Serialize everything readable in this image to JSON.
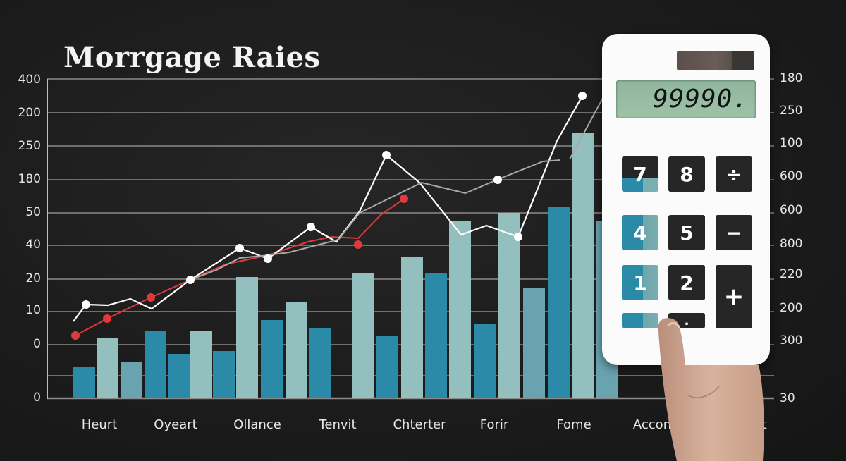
{
  "title": "Morrgage Raies",
  "axes": {
    "left_ticks": [
      "400",
      "200",
      "250",
      "180",
      "50",
      "40",
      "20",
      "10",
      "0",
      "0"
    ],
    "right_ticks": [
      "180",
      "250",
      "100",
      "600",
      "600",
      "800",
      "220",
      "200",
      "300",
      "30"
    ],
    "x_labels": [
      "Heurt",
      "Oyeart",
      "Ollance",
      "Tenvit",
      "Chterter",
      "Forir",
      "Fome",
      "Accon",
      "ret"
    ]
  },
  "calculator": {
    "display": "99990.",
    "keys": [
      "7",
      "8",
      "÷",
      "4",
      "5",
      "−",
      "1",
      "2",
      "+",
      "",
      "."
    ]
  },
  "colors": {
    "background": "#1c1c1c",
    "bar_dark": "#2b8aa8",
    "bar_light": "#93bfbe",
    "bar_mid": "#6aa3b0",
    "line_red": "#e0383b",
    "line_white": "#ffffff",
    "line_gray": "#a8a8a8",
    "grid": "#8a8a8a"
  },
  "chart_data": {
    "type": "bar",
    "title": "Morrgage Raies",
    "xlabel": "",
    "ylabel": "",
    "categories": [
      "Heurt",
      "Oyeart",
      "Ollance",
      "Tenvit",
      "Chterter",
      "Forir",
      "Fome",
      "Accon",
      "ret"
    ],
    "left_axis_ticks": [
      "400",
      "200",
      "250",
      "180",
      "50",
      "40",
      "20",
      "10",
      "0",
      "0"
    ],
    "right_axis_ticks": [
      "180",
      "250",
      "100",
      "600",
      "600",
      "800",
      "220",
      "200",
      "300",
      "30"
    ],
    "grid": true,
    "legend": "none",
    "bars": [
      {
        "x": 104,
        "top": 521,
        "w": 31,
        "color": "dark"
      },
      {
        "x": 137,
        "top": 480,
        "w": 31,
        "color": "light"
      },
      {
        "x": 171,
        "top": 513,
        "w": 31,
        "color": "mid"
      },
      {
        "x": 205,
        "top": 469,
        "w": 31,
        "color": "dark"
      },
      {
        "x": 238,
        "top": 502,
        "w": 31,
        "color": "dark"
      },
      {
        "x": 270,
        "top": 469,
        "w": 31,
        "color": "light"
      },
      {
        "x": 302,
        "top": 498,
        "w": 31,
        "color": "dark"
      },
      {
        "x": 335,
        "top": 393,
        "w": 31,
        "color": "light"
      },
      {
        "x": 370,
        "top": 454,
        "w": 31,
        "color": "dark"
      },
      {
        "x": 405,
        "top": 428,
        "w": 31,
        "color": "light"
      },
      {
        "x": 438,
        "top": 466,
        "w": 31,
        "color": "dark"
      },
      {
        "x": 499,
        "top": 388,
        "w": 31,
        "color": "light"
      },
      {
        "x": 534,
        "top": 476,
        "w": 31,
        "color": "dark"
      },
      {
        "x": 569,
        "top": 365,
        "w": 31,
        "color": "light"
      },
      {
        "x": 603,
        "top": 387,
        "w": 31,
        "color": "dark"
      },
      {
        "x": 637,
        "top": 314,
        "w": 31,
        "color": "light"
      },
      {
        "x": 672,
        "top": 459,
        "w": 31,
        "color": "dark"
      },
      {
        "x": 707,
        "top": 302,
        "w": 31,
        "color": "light"
      },
      {
        "x": 742,
        "top": 409,
        "w": 31,
        "color": "mid"
      },
      {
        "x": 777,
        "top": 293,
        "w": 31,
        "color": "dark"
      },
      {
        "x": 811,
        "top": 188,
        "w": 31,
        "color": "light"
      },
      {
        "x": 845,
        "top": 313,
        "w": 31,
        "color": "mid"
      }
    ],
    "series": [
      {
        "name": "red",
        "points": [
          [
            107,
            476
          ],
          [
            152,
            452
          ],
          [
            214,
            422
          ],
          [
            270,
            397
          ],
          [
            320,
            375
          ],
          [
            380,
            362
          ],
          [
            437,
            343
          ],
          [
            470,
            336
          ],
          [
            508,
            338
          ],
          [
            540,
            305
          ],
          [
            573,
            282
          ]
        ]
      },
      {
        "name": "white",
        "points": [
          [
            104,
            456
          ],
          [
            122,
            432
          ],
          [
            153,
            433
          ],
          [
            185,
            424
          ],
          [
            215,
            438
          ],
          [
            270,
            397
          ],
          [
            340,
            352
          ],
          [
            380,
            367
          ],
          [
            441,
            322
          ],
          [
            477,
            343
          ],
          [
            510,
            300
          ],
          [
            548,
            220
          ],
          [
            595,
            259
          ],
          [
            654,
            333
          ],
          [
            690,
            320
          ],
          [
            735,
            336
          ],
          [
            790,
            200
          ],
          [
            826,
            136
          ]
        ]
      },
      {
        "name": "gray",
        "points": [
          [
            270,
            397
          ],
          [
            307,
            383
          ],
          [
            340,
            366
          ],
          [
            372,
            363
          ],
          [
            410,
            358
          ],
          [
            480,
            340
          ],
          [
            510,
            302
          ],
          [
            598,
            259
          ],
          [
            660,
            274
          ],
          [
            705,
            255
          ],
          [
            770,
            229
          ],
          [
            795,
            227
          ]
        ]
      },
      {
        "name": "gray-2",
        "points": [
          [
            808,
            226
          ],
          [
            860,
            130
          ]
        ]
      }
    ],
    "markers_white": [
      [
        122,
        432
      ],
      [
        270,
        397
      ],
      [
        340,
        352
      ],
      [
        380,
        367
      ],
      [
        441,
        322
      ],
      [
        548,
        220
      ],
      [
        706,
        255
      ],
      [
        735,
        336
      ],
      [
        826,
        136
      ]
    ],
    "markers_red": [
      [
        107,
        476
      ],
      [
        152,
        452
      ],
      [
        214,
        422
      ],
      [
        508,
        347
      ],
      [
        573,
        282
      ]
    ]
  }
}
